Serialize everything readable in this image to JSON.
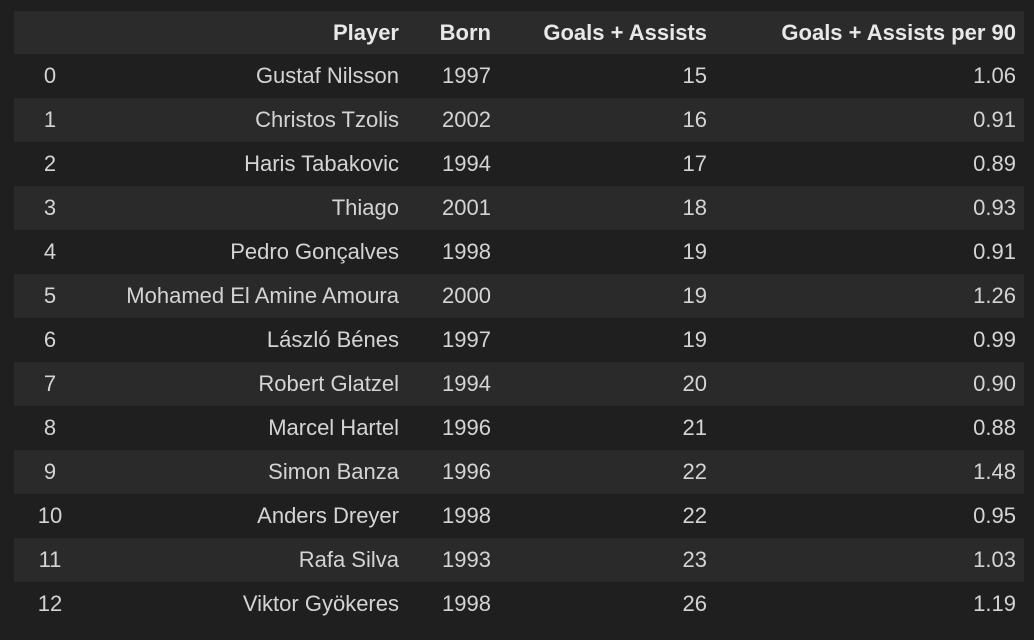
{
  "table": {
    "columns": [
      "",
      "Player",
      "Born",
      "Goals + Assists",
      "Goals + Assists per 90"
    ],
    "rows": [
      {
        "index": "0",
        "player": "Gustaf Nilsson",
        "born": "1997",
        "ga": "15",
        "ga90": "1.06"
      },
      {
        "index": "1",
        "player": "Christos Tzolis",
        "born": "2002",
        "ga": "16",
        "ga90": "0.91"
      },
      {
        "index": "2",
        "player": "Haris Tabakovic",
        "born": "1994",
        "ga": "17",
        "ga90": "0.89"
      },
      {
        "index": "3",
        "player": "Thiago",
        "born": "2001",
        "ga": "18",
        "ga90": "0.93"
      },
      {
        "index": "4",
        "player": "Pedro Gonçalves",
        "born": "1998",
        "ga": "19",
        "ga90": "0.91"
      },
      {
        "index": "5",
        "player": "Mohamed El Amine Amoura",
        "born": "2000",
        "ga": "19",
        "ga90": "1.26"
      },
      {
        "index": "6",
        "player": "László Bénes",
        "born": "1997",
        "ga": "19",
        "ga90": "0.99"
      },
      {
        "index": "7",
        "player": "Robert Glatzel",
        "born": "1994",
        "ga": "20",
        "ga90": "0.90"
      },
      {
        "index": "8",
        "player": "Marcel Hartel",
        "born": "1996",
        "ga": "21",
        "ga90": "0.88"
      },
      {
        "index": "9",
        "player": "Simon Banza",
        "born": "1996",
        "ga": "22",
        "ga90": "1.48"
      },
      {
        "index": "10",
        "player": "Anders Dreyer",
        "born": "1998",
        "ga": "22",
        "ga90": "0.95"
      },
      {
        "index": "11",
        "player": "Rafa Silva",
        "born": "1993",
        "ga": "23",
        "ga90": "1.03"
      },
      {
        "index": "12",
        "player": "Viktor Gyökeres",
        "born": "1998",
        "ga": "26",
        "ga90": "1.19"
      }
    ]
  }
}
